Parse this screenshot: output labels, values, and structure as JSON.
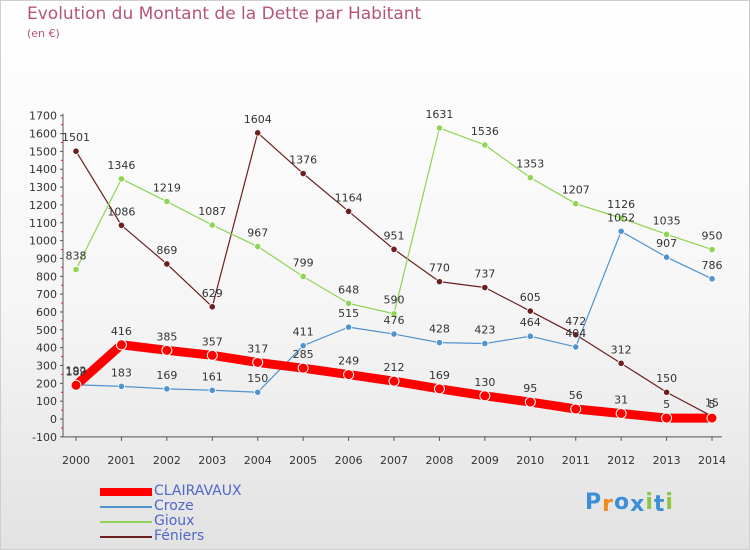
{
  "chart_data": {
    "type": "line",
    "title": "Evolution du Montant de la Dette par Habitant",
    "subtitle": "(en €)",
    "x": [
      "2000",
      "2001",
      "2002",
      "2003",
      "2004",
      "2005",
      "2006",
      "2007",
      "2008",
      "2009",
      "2010",
      "2011",
      "2012",
      "2013",
      "2014"
    ],
    "ylim": [
      -100,
      1700
    ],
    "yticks": [
      -100,
      0,
      100,
      200,
      300,
      400,
      500,
      600,
      700,
      800,
      900,
      1000,
      1100,
      1200,
      1300,
      1400,
      1500,
      1600,
      1700
    ],
    "grid": false,
    "legend_position": "bottom-left",
    "series": [
      {
        "name": "CLAIRAVAUX",
        "color": "#ff0000",
        "values": [
          189,
          416,
          385,
          357,
          317,
          285,
          249,
          212,
          169,
          130,
          95,
          56,
          31,
          5,
          5
        ]
      },
      {
        "name": "Croze",
        "color": "#4f93cf",
        "values": [
          192,
          183,
          169,
          161,
          150,
          411,
          515,
          476,
          428,
          423,
          464,
          404,
          1052,
          907,
          786
        ]
      },
      {
        "name": "Gioux",
        "color": "#8fd454",
        "values": [
          838,
          1346,
          1219,
          1087,
          967,
          799,
          648,
          590,
          1631,
          1536,
          1353,
          1207,
          1126,
          1035,
          950
        ]
      },
      {
        "name": "Féniers",
        "color": "#6b1f1f",
        "values": [
          1501,
          1086,
          869,
          629,
          1604,
          1376,
          1164,
          951,
          770,
          737,
          605,
          472,
          312,
          150,
          15
        ]
      }
    ]
  },
  "logo": {
    "letters": [
      "P",
      "r",
      "o",
      "x",
      "i",
      "t",
      "i"
    ],
    "colors": [
      "#3a8fd8",
      "#f08c1c",
      "#3a8fd8",
      "#3a8fd8",
      "#8cc63f",
      "#3a8fd8",
      "#8cc63f"
    ]
  }
}
